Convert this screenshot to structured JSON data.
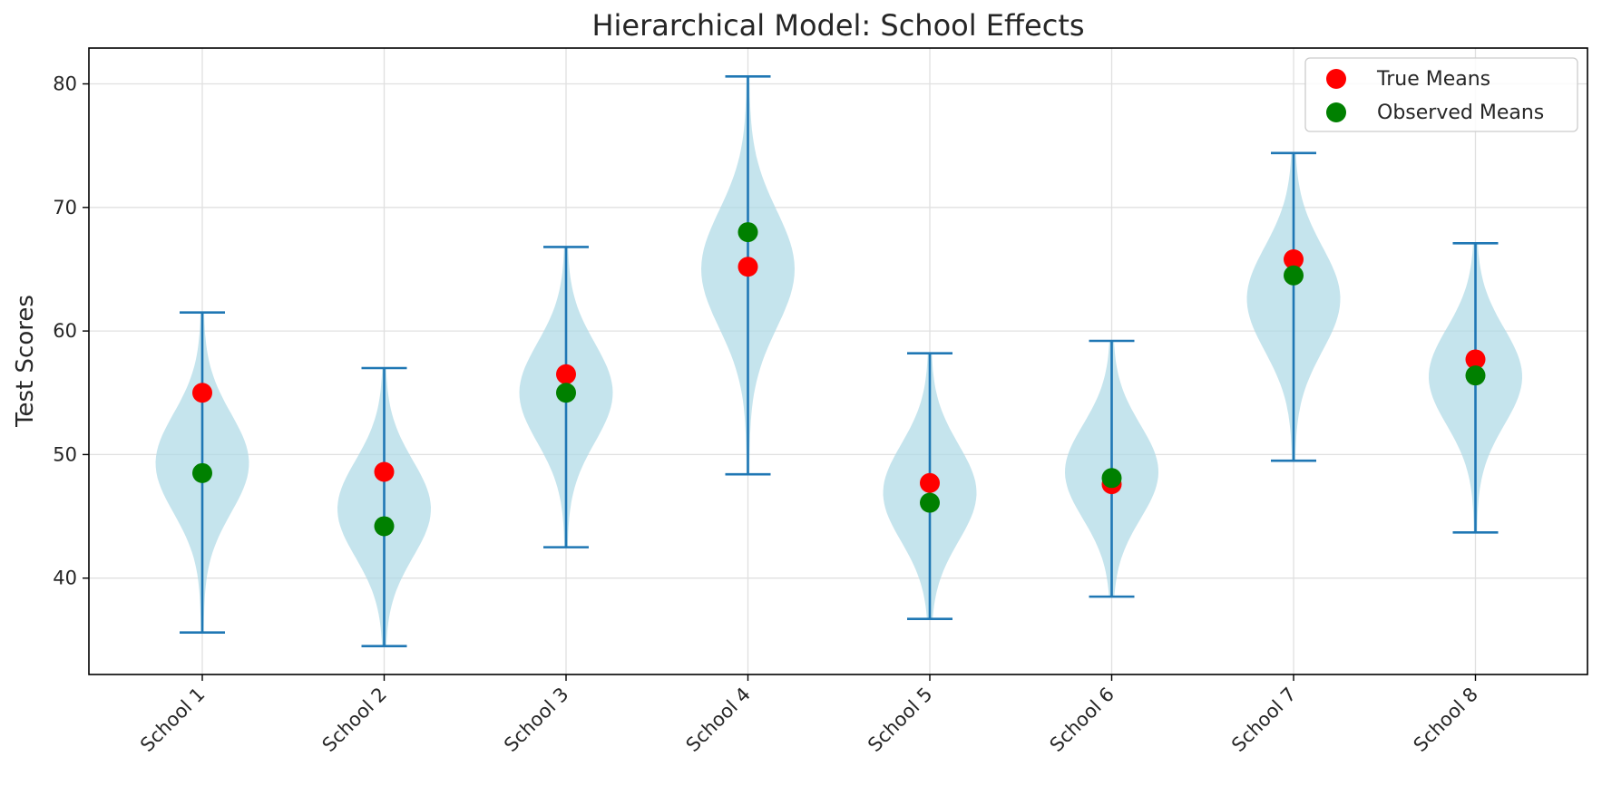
{
  "chart_data": {
    "type": "violin",
    "title": "Hierarchical Model: School Effects",
    "xlabel": "",
    "ylabel": "Test Scores",
    "categories": [
      "School 1",
      "School 2",
      "School 3",
      "School 4",
      "School 5",
      "School 6",
      "School 7",
      "School 8"
    ],
    "ylim": [
      32.2,
      82.9
    ],
    "yticks": [
      40,
      50,
      60,
      70,
      80
    ],
    "grid": true,
    "legend_position": "top-right",
    "distributions": [
      {
        "min": 35.6,
        "max": 61.5,
        "center": 49.3,
        "spread": 3.8
      },
      {
        "min": 34.5,
        "max": 57.0,
        "center": 45.6,
        "spread": 3.7
      },
      {
        "min": 42.5,
        "max": 66.8,
        "center": 55.0,
        "spread": 3.8
      },
      {
        "min": 48.4,
        "max": 80.6,
        "center": 65.0,
        "spread": 4.5
      },
      {
        "min": 36.7,
        "max": 58.2,
        "center": 46.9,
        "spread": 3.7
      },
      {
        "min": 38.5,
        "max": 59.2,
        "center": 48.6,
        "spread": 3.6
      },
      {
        "min": 49.5,
        "max": 74.4,
        "center": 62.6,
        "spread": 4.0
      },
      {
        "min": 43.7,
        "max": 67.1,
        "center": 56.3,
        "spread": 3.7
      }
    ],
    "series": [
      {
        "name": "True Means",
        "color": "#ff0000",
        "values": [
          55.0,
          48.6,
          56.5,
          65.2,
          47.7,
          47.6,
          65.8,
          57.7
        ]
      },
      {
        "name": "Observed Means",
        "color": "#008000",
        "values": [
          48.5,
          44.2,
          55.0,
          68.0,
          46.1,
          48.1,
          64.5,
          56.4
        ]
      }
    ],
    "colors": {
      "violin_fill": "#add8e6",
      "violin_line": "#1f77b4",
      "grid": "#e0e0e0",
      "axis": "#000000"
    }
  }
}
